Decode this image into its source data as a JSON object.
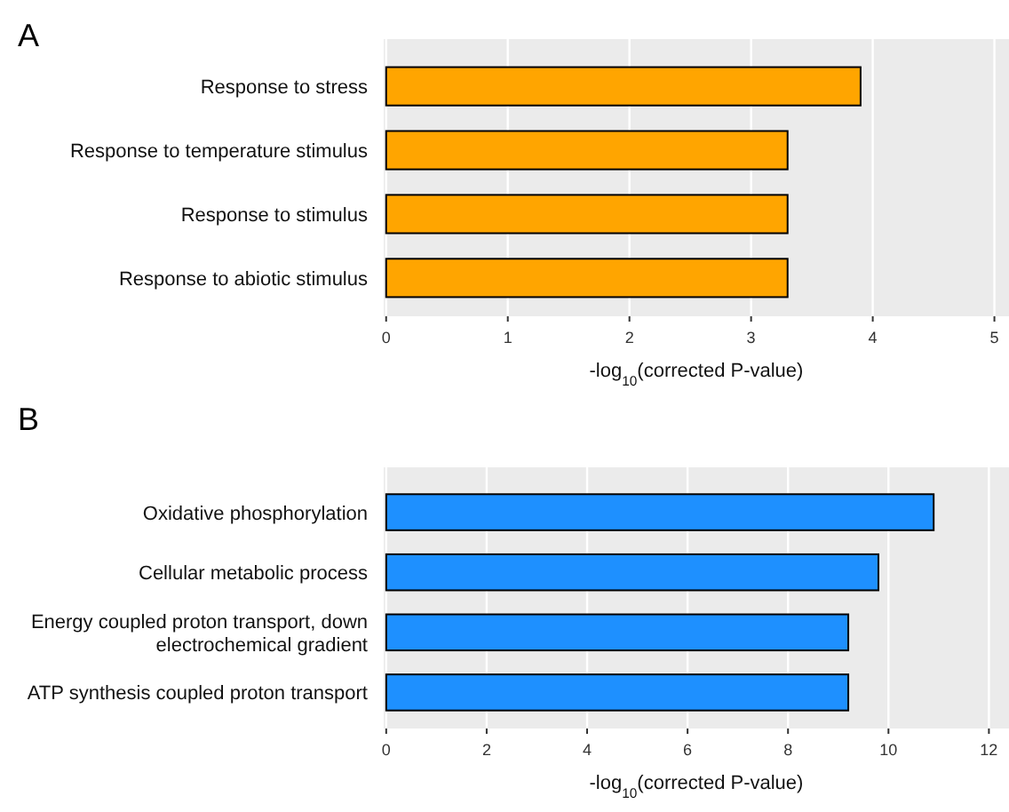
{
  "chart_data": [
    {
      "type": "bar",
      "orientation": "horizontal",
      "title": "A",
      "xlabel": "-log$_{10}$(corrected P-value)",
      "categories": [
        "Response to stress",
        "Response to temperature stimulus",
        "Response to stimulus",
        "Response to abiotic stimulus"
      ],
      "values": [
        3.9,
        3.3,
        3.3,
        3.3
      ],
      "color": "#ffa500",
      "xlim": [
        -0.02,
        5.12
      ],
      "xticks": [
        0,
        1,
        2,
        3,
        4,
        5
      ],
      "grid": "x"
    },
    {
      "type": "bar",
      "orientation": "horizontal",
      "title": "B",
      "xlabel": "-log$_{10}$(corrected P-value)",
      "categories": [
        "Oxidative phosphorylation",
        "Cellular metabolic process",
        "Energy coupled proton transport, down electrochemical gradient",
        "ATP synthesis coupled proton transport"
      ],
      "values": [
        10.9,
        9.8,
        9.2,
        9.2
      ],
      "color": "#1e90ff",
      "xlim": [
        -0.05,
        12.4
      ],
      "xticks": [
        0,
        2,
        4,
        6,
        8,
        10,
        12
      ],
      "grid": "x"
    }
  ]
}
